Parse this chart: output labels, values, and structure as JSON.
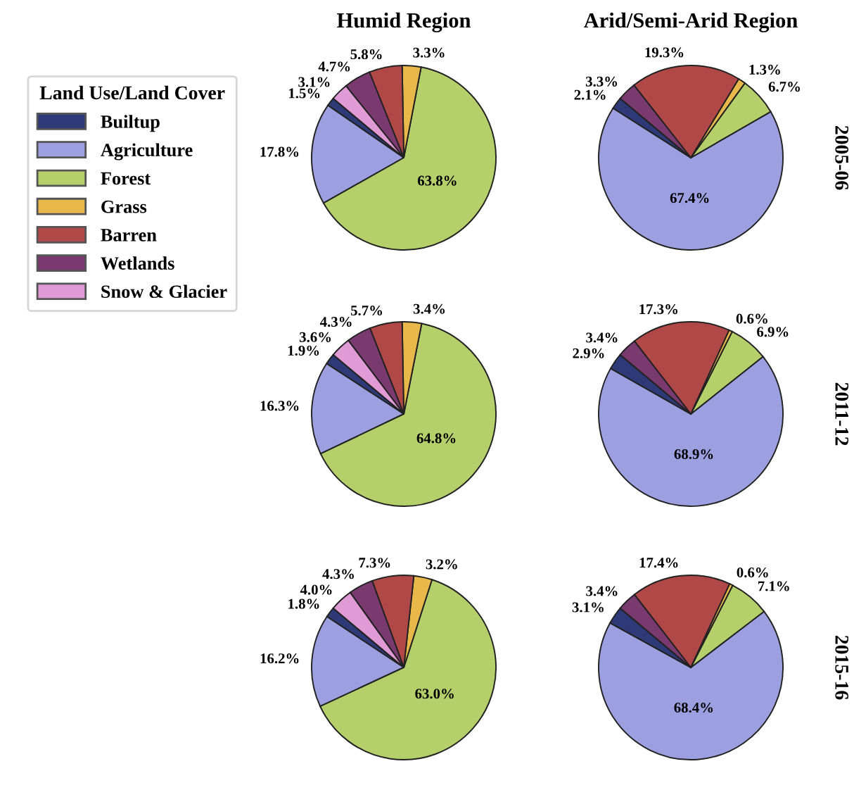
{
  "chart_data": [
    {
      "type": "pie",
      "title": "Humid Region",
      "legend": "left",
      "legend_title": "Land Use/Land Cover",
      "categories": [
        "Builtup",
        "Agriculture",
        "Forest",
        "Grass",
        "Barren",
        "Wetlands",
        "Snow & Glacier"
      ],
      "colors": [
        "#2e3a78",
        "#9c9fe0",
        "#b5d06a",
        "#e8b84a",
        "#b04848",
        "#7a3a70",
        "#e09ad6"
      ],
      "values": [
        1.5,
        17.8,
        63.8,
        3.3,
        5.8,
        4.7,
        3.1
      ],
      "value_labels": [
        "1.5%",
        "17.8%",
        "63.8%",
        "3.3%",
        "5.8%",
        "4.7%",
        "3.1%"
      ]
    },
    {
      "type": "pie",
      "title": "Arid/Semi-Arid Region",
      "annotations": [
        "2005-06"
      ],
      "colors": [
        "#2e3a78",
        "#9c9fe0",
        "#b5d06a",
        "#e8b84a",
        "#b04848",
        "#7a3a70",
        "#e09ad6"
      ],
      "values": [
        2.1,
        67.4,
        6.7,
        1.3,
        19.3,
        3.3,
        null
      ],
      "value_labels": [
        "2.1%",
        "67.4%",
        "6.7%",
        "1.3%",
        "19.3%",
        "3.3%",
        null
      ]
    },
    {
      "type": "pie",
      "colors": [
        "#2e3a78",
        "#9c9fe0",
        "#b5d06a",
        "#e8b84a",
        "#b04848",
        "#7a3a70",
        "#e09ad6"
      ],
      "values": [
        1.9,
        16.3,
        64.8,
        3.4,
        5.7,
        4.3,
        3.6
      ],
      "value_labels": [
        "1.9%",
        "16.3%",
        "64.8%",
        "3.4%",
        "5.7%",
        "4.3%",
        "3.6%"
      ]
    },
    {
      "type": "pie",
      "annotations": [
        "2011-12"
      ],
      "colors": [
        "#2e3a78",
        "#9c9fe0",
        "#b5d06a",
        "#e8b84a",
        "#b04848",
        "#7a3a70",
        "#e09ad6"
      ],
      "values": [
        2.9,
        68.9,
        6.9,
        0.6,
        17.3,
        3.4,
        null
      ],
      "value_labels": [
        "2.9%",
        "68.9%",
        "6.9%",
        "0.6%",
        "17.3%",
        "3.4%",
        null
      ]
    },
    {
      "type": "pie",
      "colors": [
        "#2e3a78",
        "#9c9fe0",
        "#b5d06a",
        "#e8b84a",
        "#b04848",
        "#7a3a70",
        "#e09ad6"
      ],
      "values": [
        1.8,
        16.2,
        63.0,
        3.2,
        7.3,
        4.3,
        4.0
      ],
      "value_labels": [
        "1.8%",
        "16.2%",
        "63.0%",
        "3.2%",
        "7.3%",
        "4.3%",
        "4.0%"
      ]
    },
    {
      "type": "pie",
      "annotations": [
        "2015-16"
      ],
      "colors": [
        "#2e3a78",
        "#9c9fe0",
        "#b5d06a",
        "#e8b84a",
        "#b04848",
        "#7a3a70",
        "#e09ad6"
      ],
      "values": [
        3.1,
        68.4,
        7.1,
        0.6,
        17.4,
        3.4,
        null
      ],
      "value_labels": [
        "3.1%",
        "68.4%",
        "7.1%",
        "0.6%",
        "17.4%",
        "3.4%",
        null
      ]
    }
  ]
}
